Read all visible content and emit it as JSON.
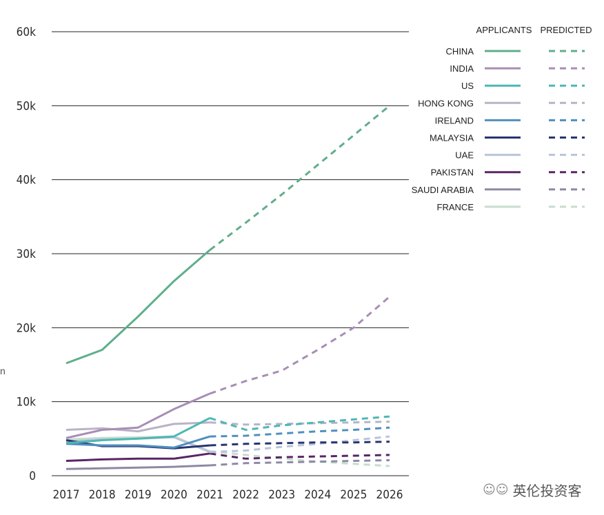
{
  "chart_data": {
    "type": "line",
    "title": "",
    "xlabel": "",
    "ylabel": "",
    "x": [
      2017,
      2018,
      2019,
      2020,
      2021,
      2022,
      2023,
      2024,
      2025,
      2026
    ],
    "x_tick_labels": [
      "2017",
      "2018",
      "2019",
      "2020",
      "2021",
      "2022",
      "2023",
      "2024",
      "2025",
      "2026"
    ],
    "ylim": [
      0,
      60000
    ],
    "y_ticks": [
      0,
      10000,
      20000,
      30000,
      40000,
      50000,
      60000
    ],
    "y_tick_labels": [
      "0",
      "10k",
      "20k",
      "30k",
      "40k",
      "50k",
      "60k"
    ],
    "grid": true,
    "actual_until": 2021,
    "legend": {
      "placement": "top-right",
      "header_actual": "APPLICANTS",
      "header_predicted": "PREDICTED"
    },
    "series": [
      {
        "name": "CHINA",
        "color": "#5fae8b",
        "values": [
          15200,
          17000,
          21500,
          26300,
          30500,
          34200,
          38000,
          42000,
          46000,
          50000
        ]
      },
      {
        "name": "INDIA",
        "color": "#a88db5",
        "values": [
          5100,
          6200,
          6500,
          9000,
          11100,
          12800,
          14200,
          17000,
          20000,
          24200
        ]
      },
      {
        "name": "US",
        "color": "#4cb8b5",
        "values": [
          4400,
          4800,
          5000,
          5300,
          7800,
          6200,
          6800,
          7200,
          7600,
          8000
        ]
      },
      {
        "name": "HONG KONG",
        "color": "#b9b3c6",
        "values": [
          6200,
          6400,
          6000,
          7000,
          7200,
          6900,
          7000,
          7100,
          7200,
          7300
        ]
      },
      {
        "name": "IRELAND",
        "color": "#4f8fbd",
        "values": [
          4300,
          4100,
          4100,
          3800,
          5300,
          5400,
          5700,
          6000,
          6200,
          6500
        ]
      },
      {
        "name": "MALAYSIA",
        "color": "#283373",
        "values": [
          4800,
          4000,
          4000,
          3700,
          4100,
          4300,
          4400,
          4500,
          4500,
          4600
        ]
      },
      {
        "name": "UAE",
        "color": "#b8c4d8",
        "values": [
          4600,
          4900,
          5000,
          5200,
          3200,
          3400,
          3900,
          4300,
          4800,
          5300
        ]
      },
      {
        "name": "PAKISTAN",
        "color": "#5a2466",
        "values": [
          2000,
          2200,
          2300,
          2300,
          3000,
          2300,
          2500,
          2600,
          2700,
          2800
        ]
      },
      {
        "name": "SAUDI ARABIA",
        "color": "#8c8aa3",
        "values": [
          900,
          1000,
          1100,
          1200,
          1400,
          1700,
          1800,
          1900,
          2000,
          2100
        ]
      },
      {
        "name": "FRANCE",
        "color": "#c8dccd",
        "values": [
          4900,
          5100,
          5200,
          5300,
          3300,
          2800,
          2300,
          1900,
          1600,
          1300
        ]
      }
    ]
  },
  "page": {
    "stray_text": "n",
    "watermark_text": "英伦投资客",
    "watermark_icon": "wechat-icon"
  }
}
